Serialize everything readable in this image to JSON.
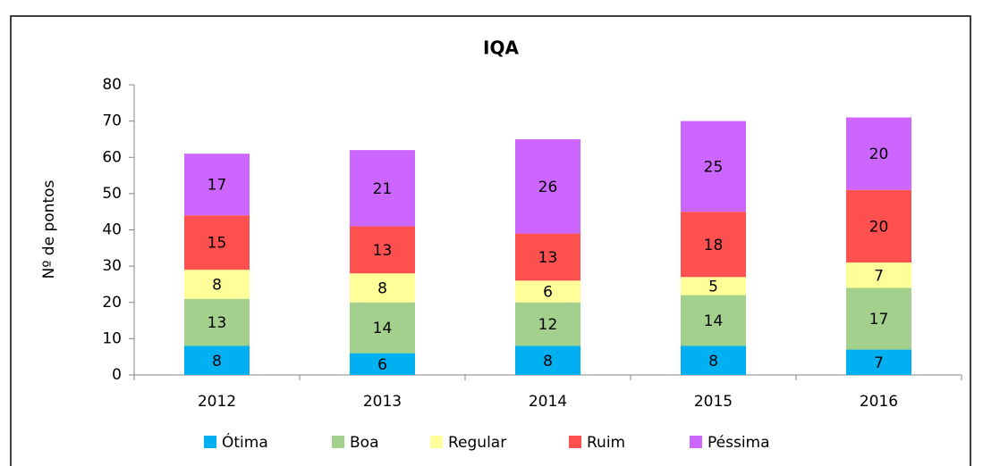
{
  "chart_data": {
    "type": "stacked_bar",
    "title": "IQA",
    "y_label": "Nº de pontos",
    "categories": [
      "2012",
      "2013",
      "2014",
      "2015",
      "2016"
    ],
    "series": [
      {
        "name": "Ótima",
        "color": "#00b0f0",
        "values": [
          8,
          6,
          8,
          8,
          7
        ]
      },
      {
        "name": "Boa",
        "color": "#a3d08d",
        "values": [
          13,
          14,
          12,
          14,
          17
        ]
      },
      {
        "name": "Regular",
        "color": "#ffff99",
        "values": [
          8,
          8,
          6,
          5,
          7
        ]
      },
      {
        "name": "Ruim",
        "color": "#ff5050",
        "values": [
          15,
          13,
          13,
          18,
          20
        ]
      },
      {
        "name": "Péssima",
        "color": "#cc66ff",
        "values": [
          17,
          21,
          26,
          25,
          20
        ]
      }
    ],
    "ylim": [
      0,
      80
    ],
    "yticks": [
      0,
      10,
      20,
      30,
      40,
      50,
      60,
      70,
      80
    ],
    "grid": false,
    "legend": "bottom"
  }
}
